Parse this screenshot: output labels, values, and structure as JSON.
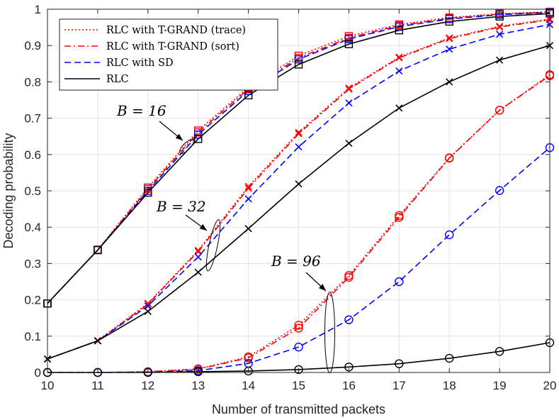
{
  "chart_data": {
    "type": "line",
    "xlabel": "Number of transmitted packets",
    "ylabel": "Decoding probability",
    "xlim": [
      10,
      20
    ],
    "ylim": [
      0,
      1
    ],
    "xticks": [
      10,
      11,
      12,
      13,
      14,
      15,
      16,
      17,
      18,
      19,
      20
    ],
    "yticks": [
      0,
      0.1,
      0.2,
      0.3,
      0.4,
      0.5,
      0.6,
      0.7,
      0.8,
      0.9,
      1
    ],
    "grid": true,
    "legend_position": "top-left",
    "legend": [
      {
        "label": "RLC with T-GRAND (trace)",
        "color": "#ff0000",
        "dash": "dotted"
      },
      {
        "label": "RLC with T-GRAND (sort)",
        "color": "#ff0000",
        "dash": "dashdot"
      },
      {
        "label": "RLC with SD",
        "color": "#0000ff",
        "dash": "dashed"
      },
      {
        "label": "RLC",
        "color": "#000000",
        "dash": "solid"
      }
    ],
    "x": [
      10,
      11,
      12,
      13,
      14,
      15,
      16,
      17,
      18,
      19,
      20
    ],
    "series": [
      {
        "group": "B16",
        "name": "RLC with T-GRAND (trace)",
        "color": "#ff0000",
        "dash": "dotted",
        "marker": "square",
        "values": [
          0.19,
          0.338,
          0.509,
          0.666,
          0.785,
          0.872,
          0.926,
          0.958,
          0.977,
          0.988,
          0.993
        ]
      },
      {
        "group": "B16",
        "name": "RLC with T-GRAND (sort)",
        "color": "#ff0000",
        "dash": "dashdot",
        "marker": "square",
        "values": [
          0.19,
          0.337,
          0.505,
          0.661,
          0.78,
          0.866,
          0.921,
          0.955,
          0.975,
          0.986,
          0.992
        ]
      },
      {
        "group": "B16",
        "name": "RLC with SD",
        "color": "#0000ff",
        "dash": "dashed",
        "marker": "square",
        "values": [
          0.19,
          0.337,
          0.5,
          0.655,
          0.775,
          0.862,
          0.918,
          0.952,
          0.973,
          0.985,
          0.991
        ]
      },
      {
        "group": "B16",
        "name": "RLC",
        "color": "#000000",
        "dash": "solid",
        "marker": "square",
        "values": [
          0.19,
          0.337,
          0.495,
          0.643,
          0.763,
          0.848,
          0.904,
          0.942,
          0.966,
          0.98,
          0.988
        ]
      },
      {
        "group": "B32",
        "name": "RLC with T-GRAND (trace)",
        "color": "#ff0000",
        "dash": "dotted",
        "marker": "x",
        "values": [
          0.037,
          0.088,
          0.19,
          0.336,
          0.512,
          0.661,
          0.783,
          0.868,
          0.921,
          0.953,
          0.973
        ]
      },
      {
        "group": "B32",
        "name": "RLC with T-GRAND (sort)",
        "color": "#ff0000",
        "dash": "dashdot",
        "marker": "x",
        "values": [
          0.037,
          0.087,
          0.188,
          0.333,
          0.507,
          0.657,
          0.78,
          0.866,
          0.919,
          0.951,
          0.971
        ]
      },
      {
        "group": "B32",
        "name": "RLC with SD",
        "color": "#0000ff",
        "dash": "dashed",
        "marker": "x",
        "values": [
          0.037,
          0.087,
          0.183,
          0.318,
          0.478,
          0.621,
          0.742,
          0.83,
          0.89,
          0.931,
          0.958
        ]
      },
      {
        "group": "B32",
        "name": "RLC",
        "color": "#000000",
        "dash": "solid",
        "marker": "x",
        "values": [
          0.037,
          0.087,
          0.168,
          0.276,
          0.396,
          0.519,
          0.631,
          0.728,
          0.8,
          0.86,
          0.9
        ]
      },
      {
        "group": "B96",
        "name": "RLC with T-GRAND (trace)",
        "color": "#ff0000",
        "dash": "dotted",
        "marker": "circle",
        "values": [
          0.0,
          0.0,
          0.002,
          0.01,
          0.043,
          0.13,
          0.267,
          0.432,
          0.591,
          0.722,
          0.82
        ]
      },
      {
        "group": "B96",
        "name": "RLC with T-GRAND (sort)",
        "color": "#ff0000",
        "dash": "dashdot",
        "marker": "circle",
        "values": [
          0.0,
          0.0,
          0.002,
          0.009,
          0.04,
          0.122,
          0.262,
          0.427,
          0.59,
          0.722,
          0.817
        ]
      },
      {
        "group": "B96",
        "name": "RLC with SD",
        "color": "#0000ff",
        "dash": "dashed",
        "marker": "circle",
        "values": [
          0.0,
          0.0,
          0.001,
          0.005,
          0.025,
          0.07,
          0.145,
          0.25,
          0.379,
          0.501,
          0.619
        ]
      },
      {
        "group": "B96",
        "name": "RLC",
        "color": "#000000",
        "dash": "solid",
        "marker": "circle",
        "values": [
          0.0,
          0.0,
          0.0,
          0.002,
          0.004,
          0.008,
          0.015,
          0.024,
          0.039,
          0.058,
          0.082
        ]
      }
    ],
    "annotations": [
      {
        "text": "B = 16",
        "group": "B16",
        "at_x": 12.77,
        "at_y": 0.622
      },
      {
        "text": "B = 32",
        "group": "B32",
        "at_x": 13.3,
        "at_y": 0.35
      },
      {
        "text": "B = 96",
        "group": "B96",
        "at_x": 15.62,
        "at_y": 0.11
      }
    ]
  }
}
